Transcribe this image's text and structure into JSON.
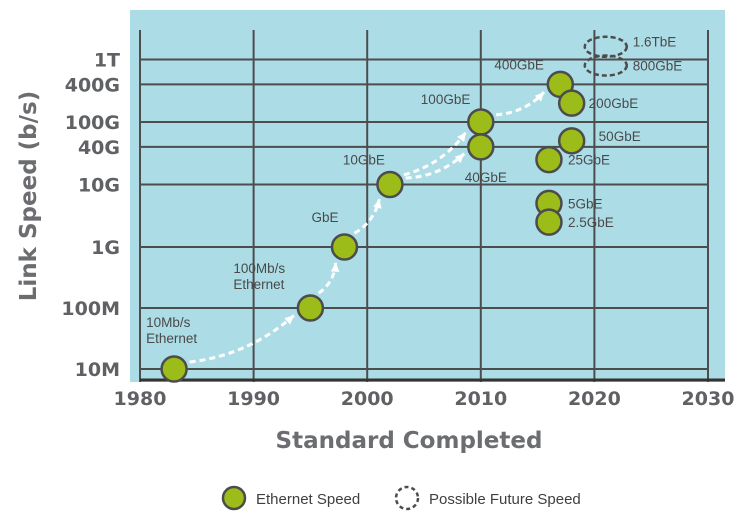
{
  "chart_data": {
    "type": "scatter",
    "xlabel": "Standard Completed",
    "ylabel": "Link Speed (b/s)",
    "x_ticks": [
      "1980",
      "1990",
      "2000",
      "2010",
      "2020",
      "2030"
    ],
    "xlim": [
      1980,
      2030
    ],
    "y_scale": "log",
    "y_ticks": [
      {
        "value": 10000000.0,
        "label": "10M"
      },
      {
        "value": 100000000.0,
        "label": "100M"
      },
      {
        "value": 1000000000.0,
        "label": "1G"
      },
      {
        "value": 10000000000.0,
        "label": "10G"
      },
      {
        "value": 40000000000.0,
        "label": "40G"
      },
      {
        "value": 100000000000.0,
        "label": "100G"
      },
      {
        "value": 400000000000.0,
        "label": "400G"
      },
      {
        "value": 1000000000000.0,
        "label": "1T"
      }
    ],
    "grid": true,
    "colors": {
      "plot_bg": "#acdce6",
      "grid": "#4d4d4d",
      "marker_fill": "#9bbc19",
      "marker_stroke": "#4c4c4c",
      "arrow": "#ffffff"
    },
    "series": [
      {
        "name": "Ethernet Speed",
        "points": [
          {
            "x": 1983,
            "y": 10000000.0,
            "label": "10Mb/s\nEthernet"
          },
          {
            "x": 1995,
            "y": 100000000.0,
            "label": "100Mb/s\nEthernet"
          },
          {
            "x": 1998,
            "y": 1000000000.0,
            "label": "GbE"
          },
          {
            "x": 2002,
            "y": 10000000000.0,
            "label": "10GbE"
          },
          {
            "x": 2010,
            "y": 100000000000.0,
            "label": "100GbE"
          },
          {
            "x": 2010,
            "y": 40000000000.0,
            "label": "40GbE"
          },
          {
            "x": 2017,
            "y": 400000000000.0,
            "label": "400GbE"
          },
          {
            "x": 2018,
            "y": 200000000000.0,
            "label": "200GbE"
          },
          {
            "x": 2018,
            "y": 50000000000.0,
            "label": "50GbE"
          },
          {
            "x": 2016,
            "y": 25000000000.0,
            "label": "25GbE"
          },
          {
            "x": 2016,
            "y": 5000000000.0,
            "label": "5GbE"
          },
          {
            "x": 2016,
            "y": 2500000000.0,
            "label": "2.5GbE"
          }
        ]
      },
      {
        "name": "Possible Future Speed",
        "points": [
          {
            "x": 2021,
            "y": 1600000000000.0,
            "label": "1.6TbE"
          },
          {
            "x": 2021,
            "y": 800000000000.0,
            "label": "800GbE"
          }
        ]
      }
    ],
    "legend": {
      "placement": "bottom-center",
      "entries": [
        "Ethernet Speed",
        "Possible Future Speed"
      ]
    }
  }
}
